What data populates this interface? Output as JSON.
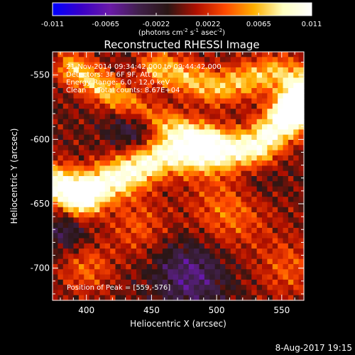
{
  "chart_data": {
    "type": "heatmap",
    "title": "Reconstructed RHESSI Image",
    "xlabel": "Heliocentric X (arcsec)",
    "ylabel": "Heliocentric Y (arcsec)",
    "xlim": [
      374,
      567
    ],
    "ylim": [
      -725,
      -532
    ],
    "x_ticks": [
      "400",
      "450",
      "500",
      "550"
    ],
    "x_tick_values": [
      400,
      450,
      500,
      550
    ],
    "y_ticks": [
      "-550",
      "-600",
      "-650",
      "-700"
    ],
    "y_tick_values": [
      -550,
      -600,
      -650,
      -700
    ],
    "colorbar": {
      "ticks": [
        "-0.011",
        "-0.0065",
        "-0.0022",
        "0.0022",
        "0.0065",
        "0.011"
      ],
      "tick_values": [
        -0.011,
        -0.0065,
        -0.0022,
        0.0022,
        0.0065,
        0.011
      ],
      "range": [
        -0.011,
        0.011
      ],
      "unit_prefix": "(photons cm",
      "unit_exp1": "-2",
      "unit_mid1": " s",
      "unit_exp2": "-1",
      "unit_mid2": " asec",
      "unit_exp3": "-2",
      "unit_suffix": ")",
      "colormap": [
        "#0000ff",
        "#3a00c8",
        "#6a1aa8",
        "#40204a",
        "#2a1614",
        "#b01000",
        "#ff4a00",
        "#ffb000",
        "#ffffc0",
        "#ffffff"
      ]
    },
    "annotations": [
      "21-Nov-2014 09:34:42.000 to 09:44:42.000",
      "Detectors: 3F 6F 9F, Att 0",
      "Energy Range: 6.0 - 12.0 keV",
      "Clean     Total counts: 8.67E+04"
    ],
    "peak_label": "Position of Peak = [559,-576]",
    "peak": {
      "x": 559,
      "y": -576
    },
    "features": [
      {
        "kind": "ridge",
        "points": [
          [
            374,
            -635
          ],
          [
            400,
            -640
          ],
          [
            430,
            -627
          ],
          [
            460,
            -612
          ],
          [
            495,
            -610
          ],
          [
            530,
            -606
          ],
          [
            567,
            -572
          ]
        ],
        "sigma": 11,
        "amp": 0.0105
      },
      {
        "kind": "ridge",
        "points": [
          [
            390,
            -545
          ],
          [
            420,
            -565
          ],
          [
            455,
            -585
          ],
          [
            490,
            -600
          ]
        ],
        "sigma": 9,
        "amp": 0.0072
      },
      {
        "kind": "ridge",
        "points": [
          [
            455,
            -545
          ],
          [
            500,
            -560
          ],
          [
            545,
            -548
          ],
          [
            567,
            -555
          ]
        ],
        "sigma": 10,
        "amp": 0.0068
      },
      {
        "kind": "blob",
        "x": 559,
        "y": -576,
        "sigma": 9,
        "amp": 0.009
      },
      {
        "kind": "blob",
        "x": 395,
        "y": -647,
        "sigma": 10,
        "amp": 0.0062
      },
      {
        "kind": "blob",
        "x": 510,
        "y": -655,
        "sigma": 22,
        "amp": 0.0045
      },
      {
        "kind": "blob",
        "x": 440,
        "y": -668,
        "sigma": 16,
        "amp": 0.0035
      },
      {
        "kind": "blob",
        "x": 400,
        "y": -700,
        "sigma": 14,
        "amp": 0.004
      },
      {
        "kind": "blob",
        "x": 555,
        "y": -700,
        "sigma": 16,
        "amp": 0.0035
      },
      {
        "kind": "blob",
        "x": 440,
        "y": -588,
        "sigma": 15,
        "amp": -0.0045
      },
      {
        "kind": "blob",
        "x": 480,
        "y": -705,
        "sigma": 20,
        "amp": -0.005
      },
      {
        "kind": "blob",
        "x": 385,
        "y": -672,
        "sigma": 12,
        "amp": -0.0035
      },
      {
        "kind": "blob",
        "x": 530,
        "y": -632,
        "sigma": 14,
        "amp": -0.0025
      }
    ]
  },
  "footer": {
    "date": "8-Aug-2017 19:15"
  }
}
